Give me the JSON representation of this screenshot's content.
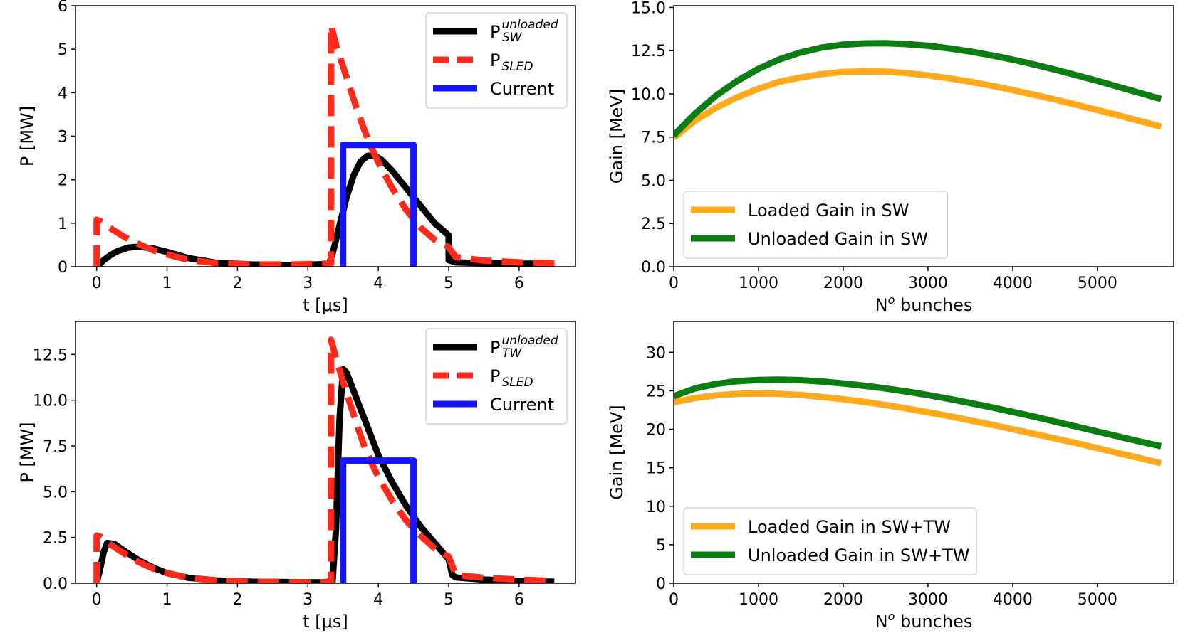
{
  "colors": {
    "black": "#000000",
    "red": "#ff2a1a",
    "blue": "#1515ff",
    "orange": "#ffaa1c",
    "green": "#0b7d12"
  },
  "chart_data": [
    {
      "id": "top-left",
      "type": "line",
      "xlabel": "t [μs]",
      "ylabel": "P [MW]",
      "xlim": [
        -0.3,
        6.8
      ],
      "ylim": [
        0,
        6
      ],
      "xticks": [
        0,
        1,
        2,
        3,
        4,
        5,
        6
      ],
      "yticks": [
        0,
        1,
        2,
        3,
        4,
        5,
        6
      ],
      "ytick_labels": [
        "0",
        "1",
        "2",
        "3",
        "4",
        "5",
        "6"
      ],
      "legend_position": "top-right",
      "series": [
        {
          "name": "P_SW^unloaded",
          "legend_main": "P",
          "legend_sup": "unloaded",
          "legend_sub": "SW",
          "color": "black",
          "style": "solid",
          "x": [
            0,
            0.1,
            0.2,
            0.3,
            0.45,
            0.6,
            0.8,
            1.0,
            1.3,
            1.7,
            2.2,
            2.7,
            3.1,
            3.3,
            3.35,
            3.45,
            3.55,
            3.65,
            3.75,
            3.85,
            3.95,
            4.05,
            4.2,
            4.4,
            4.6,
            4.8,
            5.0,
            5.0,
            5.1,
            5.5,
            6.0,
            6.5
          ],
          "y": [
            0,
            0.15,
            0.27,
            0.36,
            0.44,
            0.46,
            0.42,
            0.34,
            0.2,
            0.09,
            0.05,
            0.04,
            0.05,
            0.06,
            0.3,
            0.95,
            1.6,
            2.1,
            2.42,
            2.55,
            2.55,
            2.45,
            2.2,
            1.8,
            1.4,
            1.0,
            0.72,
            0.15,
            0.1,
            0.08,
            0.07,
            0.07
          ]
        },
        {
          "name": "P_SLED",
          "legend_main": "P",
          "legend_sub": "SLED",
          "color": "red",
          "style": "dashed",
          "x": [
            0,
            0,
            0.05,
            0.2,
            0.4,
            0.6,
            0.8,
            1.0,
            1.3,
            1.7,
            2.2,
            2.8,
            3.3,
            3.33,
            3.33,
            3.4,
            3.5,
            3.6,
            3.7,
            3.8,
            3.9,
            4.0,
            4.2,
            4.4,
            4.6,
            4.8,
            5.0,
            5.1,
            5.5,
            6.0,
            6.5
          ],
          "y": [
            0,
            1.08,
            1.05,
            0.88,
            0.68,
            0.52,
            0.38,
            0.28,
            0.16,
            0.08,
            0.05,
            0.05,
            0.07,
            0.07,
            5.55,
            5.1,
            4.6,
            4.1,
            3.6,
            3.15,
            2.75,
            2.4,
            1.8,
            1.3,
            0.9,
            0.62,
            0.45,
            0.22,
            0.14,
            0.1,
            0.08
          ]
        },
        {
          "name": "Current",
          "legend_main": "Current",
          "color": "blue",
          "style": "solid",
          "x": [
            3.5,
            3.5,
            4.5,
            4.5
          ],
          "y": [
            0,
            2.8,
            2.8,
            0
          ]
        }
      ]
    },
    {
      "id": "top-right",
      "type": "line",
      "xlabel": "N° bunches",
      "xlabel_main": "N",
      "xlabel_sup": "o",
      "xlabel_rest": " bunches",
      "ylabel": "Gain [MeV]",
      "xlim": [
        0,
        5900
      ],
      "ylim": [
        0,
        15.1
      ],
      "xticks": [
        0,
        1000,
        2000,
        3000,
        4000,
        5000
      ],
      "yticks": [
        0,
        2.5,
        5.0,
        7.5,
        10.0,
        12.5,
        15.0
      ],
      "ytick_labels": [
        "0.0",
        "2.5",
        "5.0",
        "7.5",
        "10.0",
        "12.5",
        "15.0"
      ],
      "legend_position": "bottom-left",
      "series": [
        {
          "name": "Loaded Gain in SW",
          "legend_main": "Loaded Gain in SW",
          "color": "orange",
          "style": "solid",
          "x": [
            0,
            250,
            500,
            750,
            1000,
            1250,
            1500,
            1750,
            2000,
            2250,
            2500,
            2750,
            3000,
            3250,
            3500,
            3750,
            4000,
            4250,
            4500,
            4750,
            5000,
            5250,
            5500,
            5750
          ],
          "y": [
            7.45,
            8.45,
            9.2,
            9.8,
            10.3,
            10.7,
            10.95,
            11.15,
            11.27,
            11.3,
            11.28,
            11.2,
            11.07,
            10.9,
            10.7,
            10.47,
            10.22,
            9.95,
            9.67,
            9.37,
            9.06,
            8.75,
            8.43,
            8.1
          ]
        },
        {
          "name": "Unloaded Gain in SW",
          "legend_main": "Unloaded Gain in SW",
          "color": "green",
          "style": "solid",
          "x": [
            0,
            250,
            500,
            750,
            1000,
            1250,
            1500,
            1750,
            2000,
            2250,
            2500,
            2750,
            3000,
            3250,
            3500,
            3750,
            4000,
            4250,
            4500,
            4750,
            5000,
            5250,
            5500,
            5750
          ],
          "y": [
            7.6,
            8.85,
            9.9,
            10.75,
            11.45,
            12.0,
            12.4,
            12.68,
            12.85,
            12.92,
            12.93,
            12.88,
            12.78,
            12.63,
            12.45,
            12.23,
            11.98,
            11.7,
            11.4,
            11.08,
            10.75,
            10.4,
            10.05,
            9.7
          ]
        }
      ]
    },
    {
      "id": "bottom-left",
      "type": "line",
      "xlabel": "t [μs]",
      "ylabel": "P [MW]",
      "xlim": [
        -0.3,
        6.8
      ],
      "ylim": [
        0,
        14.3
      ],
      "xticks": [
        0,
        1,
        2,
        3,
        4,
        5,
        6
      ],
      "yticks": [
        0,
        2.5,
        5.0,
        7.5,
        10.0,
        12.5
      ],
      "ytick_labels": [
        "0.0",
        "2.5",
        "5.0",
        "7.5",
        "10.0",
        "12.5"
      ],
      "legend_position": "top-right",
      "series": [
        {
          "name": "P_TW^unloaded",
          "legend_main": "P",
          "legend_sup": "unloaded",
          "legend_sub": "TW",
          "color": "black",
          "style": "solid",
          "x": [
            0,
            0.05,
            0.1,
            0.15,
            0.25,
            0.4,
            0.6,
            0.8,
            1.0,
            1.3,
            1.7,
            2.2,
            2.8,
            3.2,
            3.35,
            3.4,
            3.45,
            3.5,
            3.55,
            3.6,
            3.7,
            3.8,
            3.9,
            4.0,
            4.2,
            4.4,
            4.6,
            4.8,
            5.0,
            5.05,
            5.1,
            5.5,
            6.0,
            6.5
          ],
          "y": [
            0,
            0.8,
            1.7,
            2.2,
            2.15,
            1.75,
            1.25,
            0.85,
            0.55,
            0.3,
            0.15,
            0.08,
            0.06,
            0.05,
            0.1,
            3.0,
            9.0,
            11.7,
            11.5,
            11.0,
            10.0,
            9.0,
            8.0,
            7.0,
            5.5,
            4.2,
            3.1,
            2.2,
            1.3,
            0.45,
            0.32,
            0.2,
            0.12,
            0.08
          ]
        },
        {
          "name": "P_SLED",
          "legend_main": "P",
          "legend_sub": "SLED",
          "color": "red",
          "style": "dashed",
          "x": [
            0,
            0,
            0.05,
            0.2,
            0.4,
            0.6,
            0.8,
            1.0,
            1.3,
            1.7,
            2.2,
            2.8,
            3.3,
            3.33,
            3.33,
            3.4,
            3.5,
            3.6,
            3.7,
            3.8,
            3.9,
            4.0,
            4.2,
            4.4,
            4.6,
            4.8,
            5.0,
            5.1,
            5.5,
            6.0,
            6.5
          ],
          "y": [
            0,
            2.6,
            2.55,
            2.1,
            1.6,
            1.15,
            0.8,
            0.55,
            0.3,
            0.15,
            0.08,
            0.06,
            0.06,
            0.06,
            13.3,
            12.3,
            11.0,
            9.8,
            8.6,
            7.5,
            6.6,
            5.8,
            4.5,
            3.4,
            2.6,
            1.9,
            1.45,
            0.45,
            0.3,
            0.2,
            0.12
          ]
        },
        {
          "name": "Current",
          "legend_main": "Current",
          "color": "blue",
          "style": "solid",
          "x": [
            3.5,
            3.5,
            4.5,
            4.5
          ],
          "y": [
            0,
            6.7,
            6.7,
            0
          ]
        }
      ]
    },
    {
      "id": "bottom-right",
      "type": "line",
      "xlabel": "N° bunches",
      "xlabel_main": "N",
      "xlabel_sup": "o",
      "xlabel_rest": " bunches",
      "ylabel": "Gain [MeV]",
      "xlim": [
        0,
        5900
      ],
      "ylim": [
        0,
        34
      ],
      "xticks": [
        0,
        1000,
        2000,
        3000,
        4000,
        5000
      ],
      "yticks": [
        0,
        5,
        10,
        15,
        20,
        25,
        30
      ],
      "ytick_labels": [
        "0",
        "5",
        "10",
        "15",
        "20",
        "25",
        "30"
      ],
      "legend_position": "bottom-left",
      "series": [
        {
          "name": "Loaded Gain in SW+TW",
          "legend_main": "Loaded Gain in SW+TW",
          "color": "orange",
          "style": "solid",
          "x": [
            0,
            250,
            500,
            750,
            1000,
            1250,
            1500,
            1750,
            2000,
            2250,
            2500,
            2750,
            3000,
            3250,
            3500,
            3750,
            4000,
            4250,
            4500,
            4750,
            5000,
            5250,
            5500,
            5750
          ],
          "y": [
            23.5,
            24.05,
            24.4,
            24.6,
            24.65,
            24.6,
            24.45,
            24.2,
            23.9,
            23.55,
            23.15,
            22.7,
            22.2,
            21.7,
            21.15,
            20.6,
            20.0,
            19.4,
            18.8,
            18.2,
            17.55,
            16.9,
            16.25,
            15.6
          ]
        },
        {
          "name": "Unloaded Gain in SW+TW",
          "legend_main": "Unloaded Gain in SW+TW",
          "color": "green",
          "style": "solid",
          "x": [
            0,
            250,
            500,
            750,
            1000,
            1250,
            1500,
            1750,
            2000,
            2250,
            2500,
            2750,
            3000,
            3250,
            3500,
            3750,
            4000,
            4250,
            4500,
            4750,
            5000,
            5250,
            5500,
            5750
          ],
          "y": [
            24.3,
            25.3,
            25.9,
            26.25,
            26.4,
            26.45,
            26.38,
            26.2,
            25.95,
            25.65,
            25.3,
            24.9,
            24.45,
            23.95,
            23.4,
            22.85,
            22.25,
            21.65,
            21.0,
            20.35,
            19.7,
            19.05,
            18.4,
            17.8
          ]
        }
      ]
    }
  ]
}
